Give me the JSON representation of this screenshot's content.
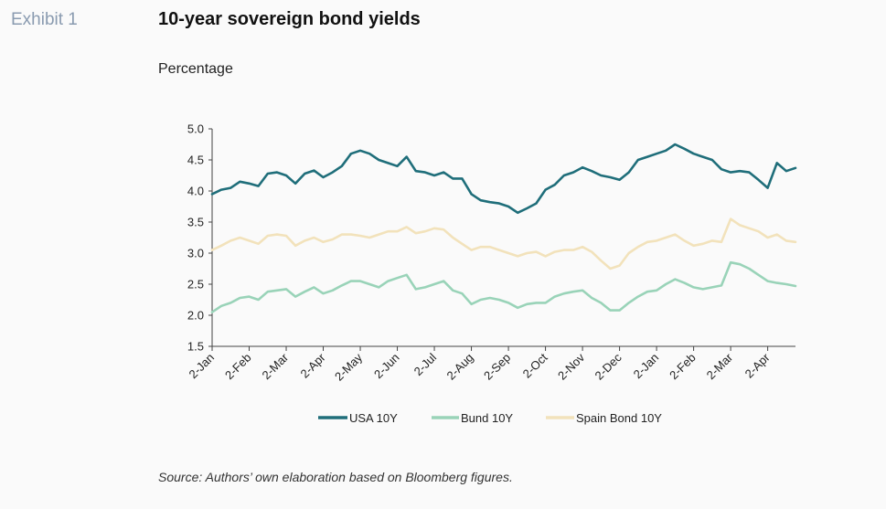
{
  "header": {
    "exhibit": "Exhibit 1",
    "title": "10-year sovereign bond yields",
    "subtitle": "Percentage"
  },
  "footer": {
    "source": "Source: Authors’ own elaboration based on Bloomberg figures."
  },
  "chart_data": {
    "type": "line",
    "title": "10-year sovereign bond yields",
    "ylabel": "Percentage",
    "xlabel": "",
    "ylim": [
      1.5,
      5.0
    ],
    "yticks": [
      "5.0",
      "4.5",
      "4.0",
      "3.5",
      "3.0",
      "2.5",
      "2.0",
      "1.5"
    ],
    "x_tick_labels": [
      "2-Jan",
      "2-Feb",
      "2-Mar",
      "2-Apr",
      "2-May",
      "2-Jun",
      "2-Jul",
      "2-Aug",
      "2-Sep",
      "2-Oct",
      "2-Nov",
      "2-Dec",
      "2-Jan",
      "2-Feb",
      "2-Mar",
      "2-Apr"
    ],
    "x_end": 15.75,
    "grid": false,
    "legend_position": "bottom",
    "series": [
      {
        "name": "USA 10Y",
        "color": "#1f6e7a",
        "x": [
          0,
          0.25,
          0.5,
          0.75,
          1,
          1.25,
          1.5,
          1.75,
          2,
          2.25,
          2.5,
          2.75,
          3,
          3.25,
          3.5,
          3.75,
          4,
          4.25,
          4.5,
          4.75,
          5,
          5.25,
          5.5,
          5.75,
          6,
          6.25,
          6.5,
          6.75,
          7,
          7.25,
          7.5,
          7.75,
          8,
          8.25,
          8.5,
          8.75,
          9,
          9.25,
          9.5,
          9.75,
          10,
          10.25,
          10.5,
          10.75,
          11,
          11.25,
          11.5,
          11.75,
          12,
          12.25,
          12.5,
          12.75,
          13,
          13.25,
          13.5,
          13.75,
          14,
          14.25,
          14.5,
          14.75,
          15,
          15.25,
          15.5,
          15.75
        ],
        "values": [
          3.95,
          4.02,
          4.05,
          4.15,
          4.12,
          4.08,
          4.28,
          4.3,
          4.25,
          4.12,
          4.28,
          4.33,
          4.22,
          4.3,
          4.4,
          4.6,
          4.65,
          4.6,
          4.5,
          4.45,
          4.4,
          4.55,
          4.32,
          4.3,
          4.25,
          4.3,
          4.2,
          4.2,
          3.95,
          3.85,
          3.82,
          3.8,
          3.75,
          3.65,
          3.72,
          3.8,
          4.02,
          4.1,
          4.25,
          4.3,
          4.38,
          4.32,
          4.25,
          4.22,
          4.18,
          4.3,
          4.5,
          4.55,
          4.6,
          4.65,
          4.75,
          4.68,
          4.6,
          4.55,
          4.5,
          4.35,
          4.3,
          4.32,
          4.3,
          4.18,
          4.05,
          4.45,
          4.32,
          4.37
        ]
      },
      {
        "name": "Bund 10Y",
        "color": "#99d3b8",
        "x": [
          0,
          0.25,
          0.5,
          0.75,
          1,
          1.25,
          1.5,
          1.75,
          2,
          2.25,
          2.5,
          2.75,
          3,
          3.25,
          3.5,
          3.75,
          4,
          4.25,
          4.5,
          4.75,
          5,
          5.25,
          5.5,
          5.75,
          6,
          6.25,
          6.5,
          6.75,
          7,
          7.25,
          7.5,
          7.75,
          8,
          8.25,
          8.5,
          8.75,
          9,
          9.25,
          9.5,
          9.75,
          10,
          10.25,
          10.5,
          10.75,
          11,
          11.25,
          11.5,
          11.75,
          12,
          12.25,
          12.5,
          12.75,
          13,
          13.25,
          13.5,
          13.75,
          14,
          14.25,
          14.5,
          14.75,
          15,
          15.25,
          15.5,
          15.75
        ],
        "values": [
          2.05,
          2.15,
          2.2,
          2.28,
          2.3,
          2.25,
          2.38,
          2.4,
          2.42,
          2.3,
          2.38,
          2.45,
          2.35,
          2.4,
          2.48,
          2.55,
          2.55,
          2.5,
          2.45,
          2.55,
          2.6,
          2.65,
          2.42,
          2.45,
          2.5,
          2.55,
          2.4,
          2.35,
          2.18,
          2.25,
          2.28,
          2.25,
          2.2,
          2.12,
          2.18,
          2.2,
          2.2,
          2.3,
          2.35,
          2.38,
          2.4,
          2.28,
          2.2,
          2.08,
          2.08,
          2.2,
          2.3,
          2.38,
          2.4,
          2.5,
          2.58,
          2.52,
          2.45,
          2.42,
          2.45,
          2.48,
          2.85,
          2.82,
          2.75,
          2.65,
          2.55,
          2.52,
          2.5,
          2.47
        ]
      },
      {
        "name": "Spain Bond 10Y",
        "color": "#f2e2bb",
        "x": [
          0,
          0.25,
          0.5,
          0.75,
          1,
          1.25,
          1.5,
          1.75,
          2,
          2.25,
          2.5,
          2.75,
          3,
          3.25,
          3.5,
          3.75,
          4,
          4.25,
          4.5,
          4.75,
          5,
          5.25,
          5.5,
          5.75,
          6,
          6.25,
          6.5,
          6.75,
          7,
          7.25,
          7.5,
          7.75,
          8,
          8.25,
          8.5,
          8.75,
          9,
          9.25,
          9.5,
          9.75,
          10,
          10.25,
          10.5,
          10.75,
          11,
          11.25,
          11.5,
          11.75,
          12,
          12.25,
          12.5,
          12.75,
          13,
          13.25,
          13.5,
          13.75,
          14,
          14.25,
          14.5,
          14.75,
          15,
          15.25,
          15.5,
          15.75
        ],
        "values": [
          3.05,
          3.12,
          3.2,
          3.25,
          3.2,
          3.15,
          3.28,
          3.3,
          3.28,
          3.12,
          3.2,
          3.25,
          3.18,
          3.22,
          3.3,
          3.3,
          3.28,
          3.25,
          3.3,
          3.35,
          3.35,
          3.42,
          3.32,
          3.35,
          3.4,
          3.38,
          3.25,
          3.15,
          3.05,
          3.1,
          3.1,
          3.05,
          3.0,
          2.95,
          3.0,
          3.02,
          2.95,
          3.02,
          3.05,
          3.05,
          3.1,
          3.02,
          2.88,
          2.75,
          2.8,
          3.0,
          3.1,
          3.18,
          3.2,
          3.25,
          3.3,
          3.2,
          3.12,
          3.15,
          3.2,
          3.18,
          3.55,
          3.45,
          3.4,
          3.35,
          3.25,
          3.3,
          3.2,
          3.18
        ]
      }
    ]
  }
}
